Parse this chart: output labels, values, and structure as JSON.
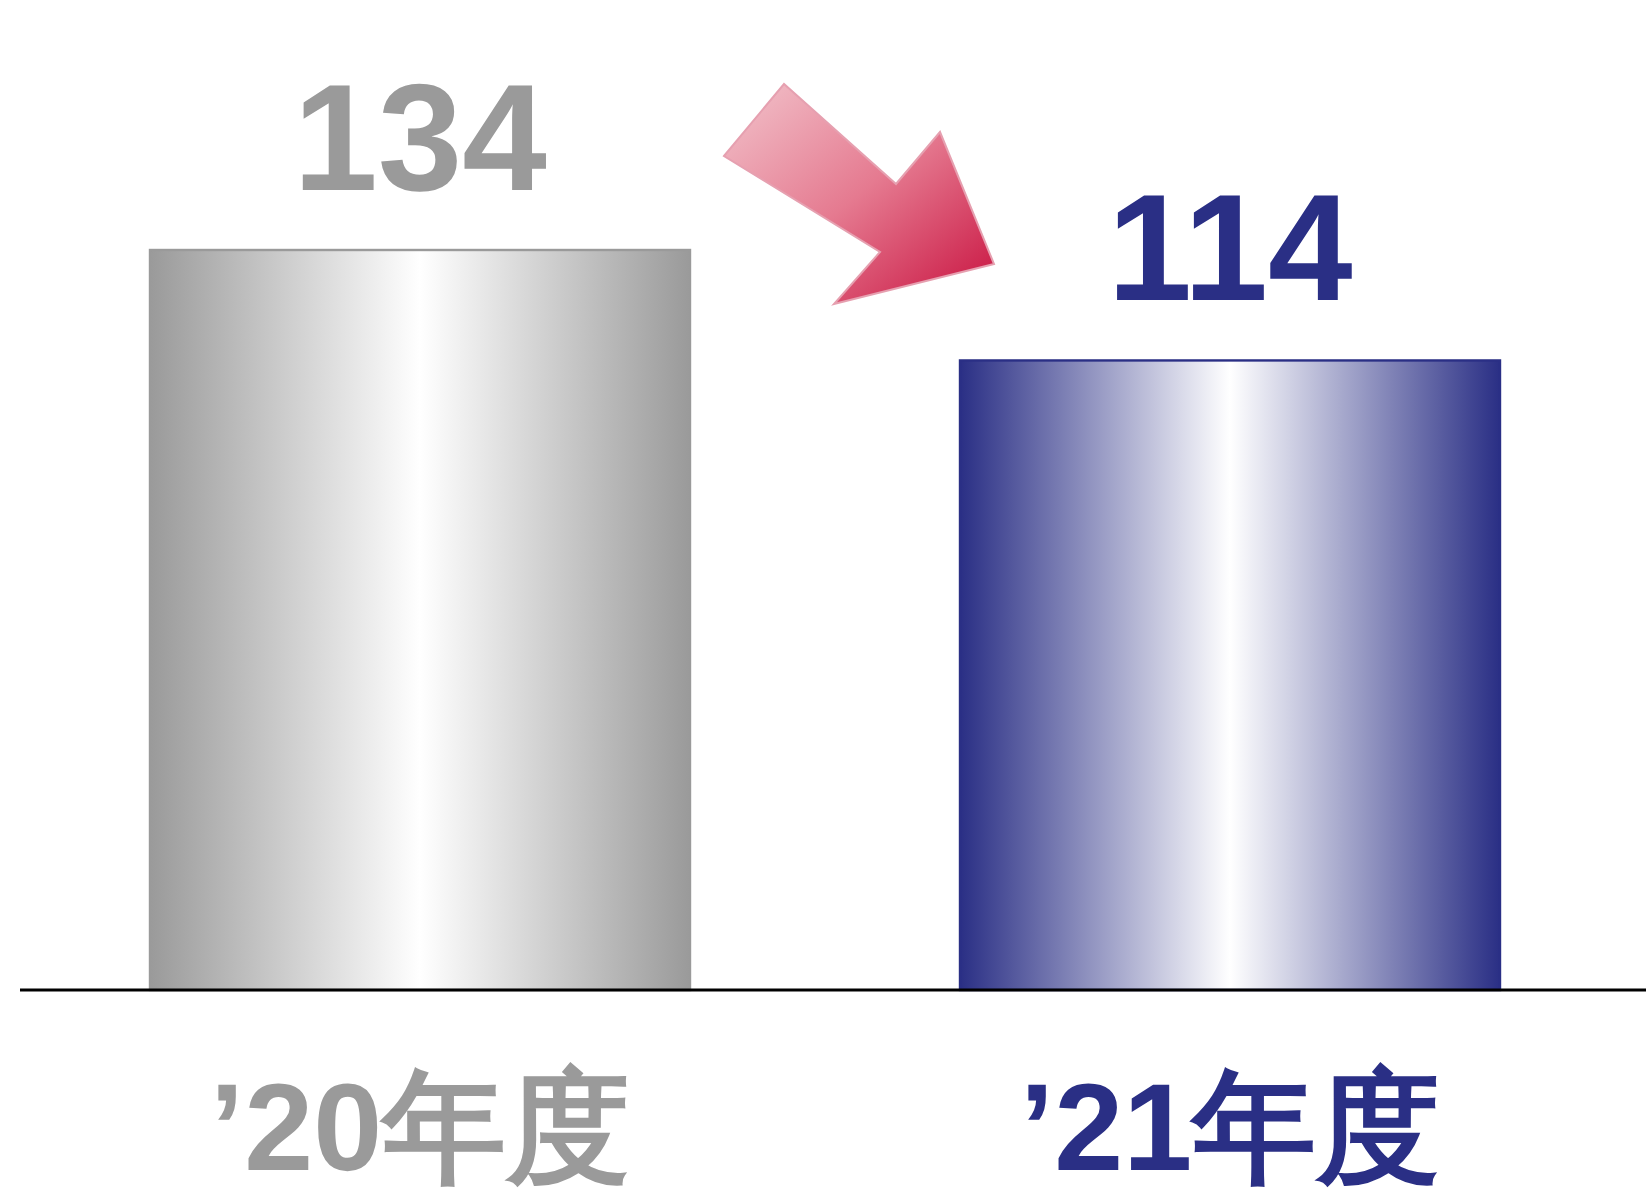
{
  "chart_data": {
    "type": "bar",
    "categories": [
      "’20年度",
      "’21年度"
    ],
    "values": [
      134,
      114
    ],
    "colors": [
      "#9a9a9a",
      "#2a2f85"
    ],
    "data_labels": true
  }
}
